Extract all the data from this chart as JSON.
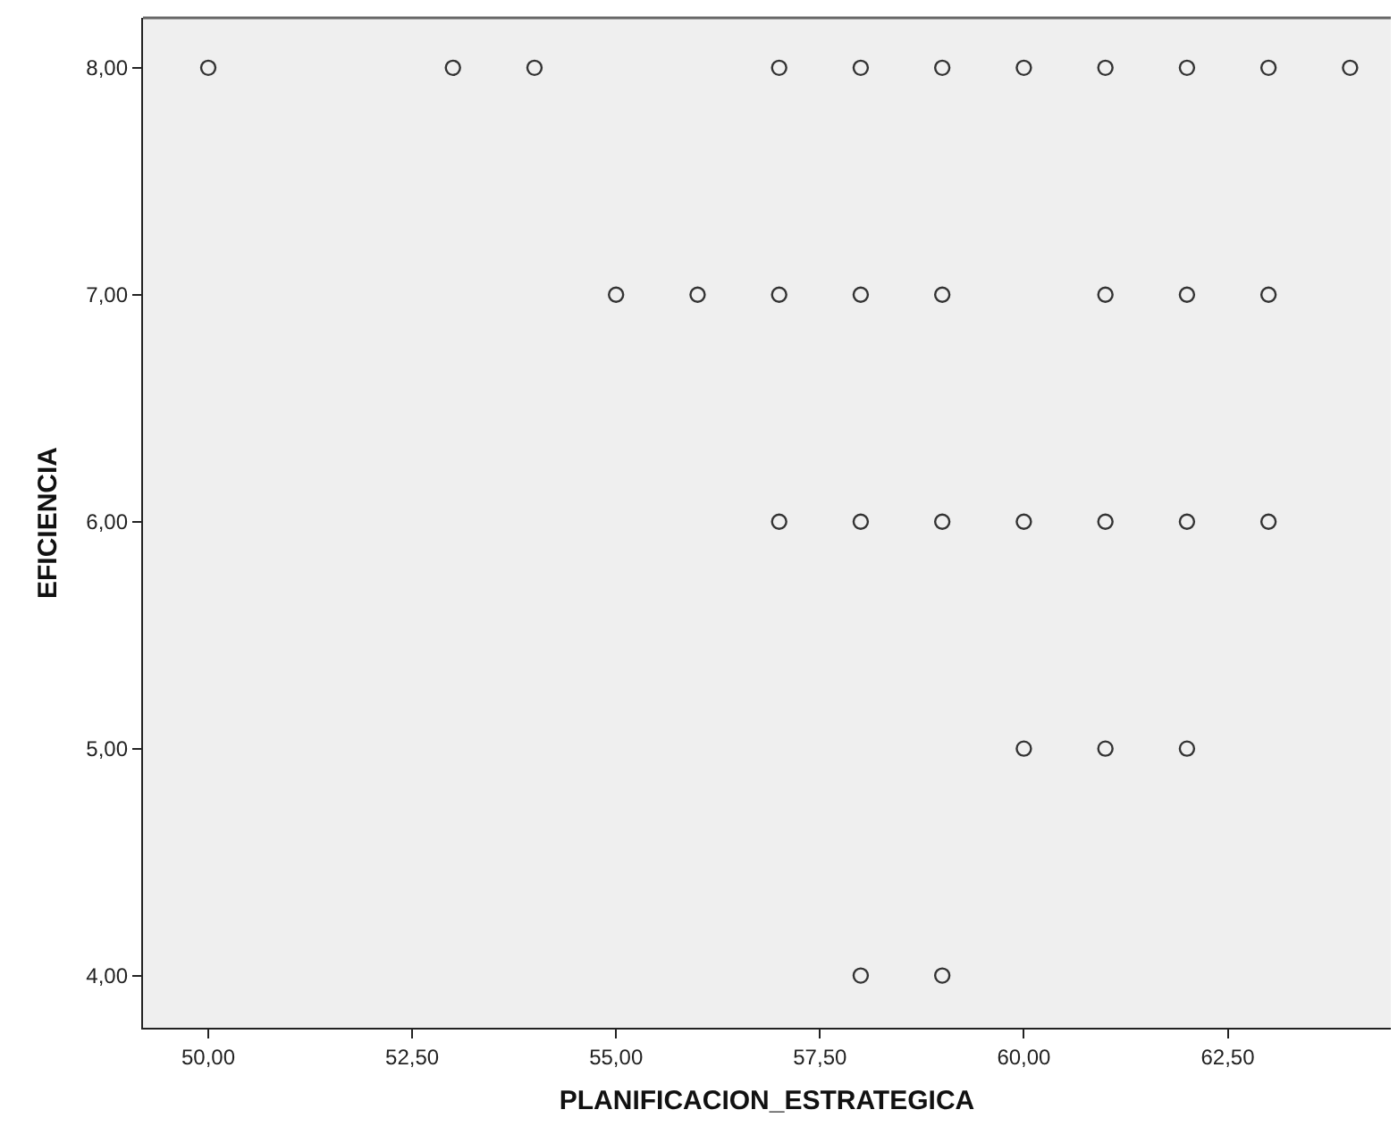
{
  "chart_data": {
    "type": "scatter",
    "xlabel": "PLANIFICACION_ESTRATEGICA",
    "ylabel": "EFICIENCIA",
    "x": [
      50,
      53,
      54,
      57,
      58,
      59,
      60,
      61,
      62,
      63,
      64,
      55,
      56,
      57,
      58,
      59,
      61,
      62,
      63,
      57,
      58,
      59,
      60,
      61,
      62,
      63,
      60,
      61,
      62,
      58,
      59
    ],
    "values": [
      8,
      8,
      8,
      8,
      8,
      8,
      8,
      8,
      8,
      8,
      8,
      7,
      7,
      7,
      7,
      7,
      7,
      7,
      7,
      6,
      6,
      6,
      6,
      6,
      6,
      6,
      5,
      5,
      5,
      4,
      4
    ],
    "color": "#333333",
    "marker": "circle",
    "grid": false,
    "xlim": [
      49.2,
      64.5
    ],
    "ylim": [
      3.77,
      8.22
    ],
    "xticks": [
      {
        "value": 50,
        "label": "50,00"
      },
      {
        "value": 52.5,
        "label": "52,50"
      },
      {
        "value": 55,
        "label": "55,00"
      },
      {
        "value": 57.5,
        "label": "57,50"
      },
      {
        "value": 60,
        "label": "60,00"
      },
      {
        "value": 62.5,
        "label": "62,50"
      }
    ],
    "yticks": [
      {
        "value": 4,
        "label": "4,00"
      },
      {
        "value": 5,
        "label": "5,00"
      },
      {
        "value": 6,
        "label": "6,00"
      },
      {
        "value": 7,
        "label": "7,00"
      },
      {
        "value": 8,
        "label": "8,00"
      }
    ]
  }
}
